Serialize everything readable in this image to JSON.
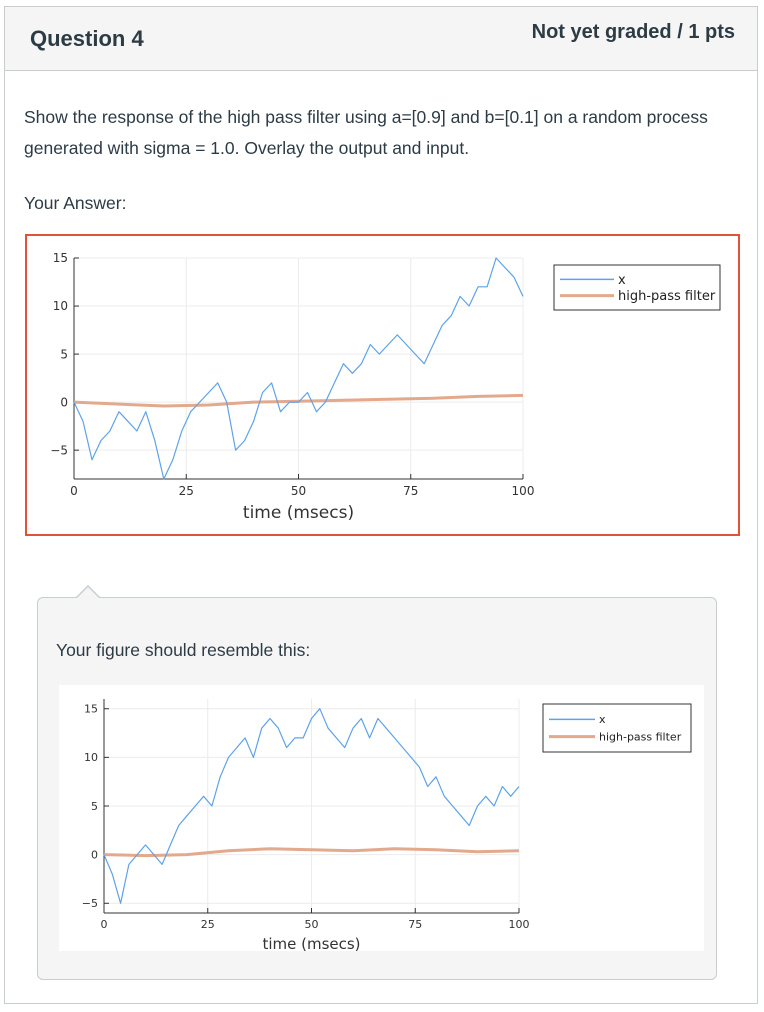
{
  "question": {
    "title": "Question 4",
    "grade_status": "Not yet graded / 1 pts",
    "prompt": "Show the response of the high pass filter using a=[0.9] and b=[0.1] on a random process generated with sigma = 1.0.  Overlay the output and input."
  },
  "answer": {
    "label": "Your Answer:"
  },
  "comment": {
    "text": "Your figure should resemble this:"
  },
  "colors": {
    "accent_border": "#e0533a",
    "series_x": "#5fa2ea",
    "series_hp": "#e2a98d"
  },
  "chart_data": [
    {
      "type": "line",
      "xlabel": "time (msecs)",
      "ylabel": "",
      "xlim": [
        0,
        100
      ],
      "ylim": [
        -8,
        15
      ],
      "xticks": [
        0,
        25,
        50,
        75,
        100
      ],
      "yticks": [
        15,
        10,
        5,
        0,
        -5
      ],
      "xtick_labels": [
        "0",
        "25",
        "50",
        "75",
        "100"
      ],
      "ytick_labels": [
        "15",
        "10",
        "5",
        "0",
        "−5"
      ],
      "grid": true,
      "legend_position": "top-right",
      "series": [
        {
          "name": "x",
          "x": [
            0,
            2,
            4,
            6,
            8,
            10,
            12,
            14,
            16,
            18,
            20,
            22,
            24,
            26,
            28,
            30,
            32,
            34,
            36,
            38,
            40,
            42,
            44,
            46,
            48,
            50,
            52,
            54,
            56,
            58,
            60,
            62,
            64,
            66,
            68,
            70,
            72,
            74,
            76,
            78,
            80,
            82,
            84,
            86,
            88,
            90,
            92,
            94,
            96,
            98,
            100
          ],
          "values": [
            0,
            -2,
            -6,
            -4,
            -3,
            -1,
            -2,
            -3,
            -1,
            -4,
            -8,
            -6,
            -3,
            -1,
            0,
            1,
            2,
            0,
            -5,
            -4,
            -2,
            1,
            2,
            -1,
            0,
            0,
            1,
            -1,
            0,
            2,
            4,
            3,
            4,
            6,
            5,
            6,
            7,
            6,
            5,
            4,
            6,
            8,
            9,
            11,
            10,
            12,
            12,
            15,
            14,
            13,
            11
          ]
        },
        {
          "name": "high-pass filter",
          "x": [
            0,
            10,
            20,
            30,
            40,
            50,
            60,
            70,
            80,
            90,
            100
          ],
          "values": [
            0,
            -0.2,
            -0.4,
            -0.3,
            0,
            0.1,
            0.2,
            0.3,
            0.4,
            0.6,
            0.7
          ]
        }
      ]
    },
    {
      "type": "line",
      "xlabel": "time (msecs)",
      "ylabel": "",
      "xlim": [
        0,
        100
      ],
      "ylim": [
        -6,
        16
      ],
      "xticks": [
        0,
        25,
        50,
        75,
        100
      ],
      "yticks": [
        15,
        10,
        5,
        0,
        -5
      ],
      "xtick_labels": [
        "0",
        "25",
        "50",
        "75",
        "100"
      ],
      "ytick_labels": [
        "15",
        "10",
        "5",
        "0",
        "−5"
      ],
      "grid": true,
      "legend_position": "top-right",
      "series": [
        {
          "name": "x",
          "x": [
            0,
            2,
            4,
            6,
            8,
            10,
            12,
            14,
            16,
            18,
            20,
            22,
            24,
            26,
            28,
            30,
            32,
            34,
            36,
            38,
            40,
            42,
            44,
            46,
            48,
            50,
            52,
            54,
            56,
            58,
            60,
            62,
            64,
            66,
            68,
            70,
            72,
            74,
            76,
            78,
            80,
            82,
            84,
            86,
            88,
            90,
            92,
            94,
            96,
            98,
            100
          ],
          "values": [
            0,
            -2,
            -5,
            -1,
            0,
            1,
            0,
            -1,
            1,
            3,
            4,
            5,
            6,
            5,
            8,
            10,
            11,
            12,
            10,
            13,
            14,
            13,
            11,
            12,
            12,
            14,
            15,
            13,
            12,
            11,
            13,
            14,
            12,
            14,
            13,
            12,
            11,
            10,
            9,
            7,
            8,
            6,
            5,
            4,
            3,
            5,
            6,
            5,
            7,
            6,
            7
          ]
        },
        {
          "name": "high-pass filter",
          "x": [
            0,
            10,
            20,
            30,
            40,
            50,
            60,
            70,
            80,
            90,
            100
          ],
          "values": [
            0,
            -0.1,
            0,
            0.4,
            0.6,
            0.5,
            0.4,
            0.6,
            0.5,
            0.3,
            0.4
          ]
        }
      ]
    }
  ]
}
